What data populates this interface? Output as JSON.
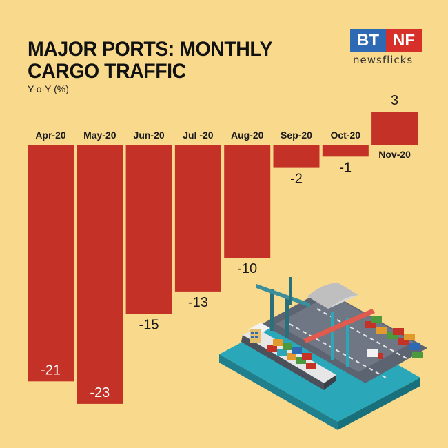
{
  "header": {
    "title_line1": "MAJOR PORTS: MONTHLY",
    "title_line2": "CARGO TRAFFIC",
    "subtitle": "Y-o-Y (%)"
  },
  "logo": {
    "left": "BT",
    "right": "NF",
    "tagline": "newsflicks"
  },
  "colors": {
    "background": "#f9d98b",
    "bar": "#c33127",
    "text": "#111111"
  },
  "chart_data": {
    "type": "bar",
    "title": "MAJOR PORTS: MONTHLY CARGO TRAFFIC",
    "subtitle": "Y-o-Y (%)",
    "categories": [
      "Apr-20",
      "May-20",
      "Jun-20",
      "Jul -20",
      "Aug-20",
      "Sep-20",
      "Oct-20",
      "Nov-20"
    ],
    "values": [
      -21,
      -23,
      -15,
      -13,
      -10,
      -2,
      -1,
      3
    ],
    "value_labels": [
      "-21",
      "-23",
      "-15",
      "-13",
      "-10",
      "-2",
      "-1",
      "3"
    ],
    "xlabel": "",
    "ylabel": "",
    "ylim": [
      -23,
      3
    ],
    "grid": false,
    "legend": "none"
  },
  "illustration": {
    "icon": "port-container-ship-icon"
  }
}
